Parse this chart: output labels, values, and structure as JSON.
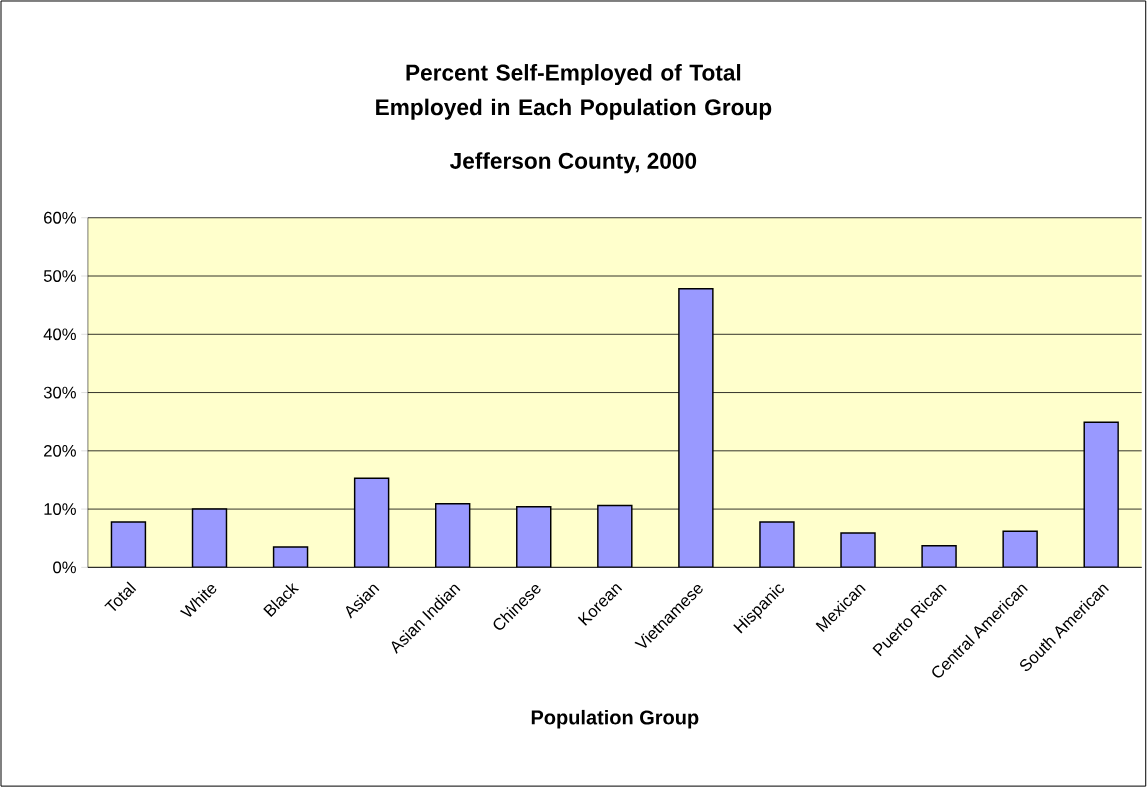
{
  "chart_data": {
    "type": "bar",
    "title": "Percent Self-Employed of Total Employed in Each Population Group",
    "subtitle": "Jefferson County, 2000",
    "xlabel": "Population Group",
    "categories": [
      "Total",
      "White",
      "Black",
      "Asian",
      "Asian Indian",
      "Chinese",
      "Korean",
      "Vietnamese",
      "Hispanic",
      "Mexican",
      "Puerto Rican",
      "Central American",
      "South American"
    ],
    "values": [
      7.8,
      10.0,
      3.5,
      15.3,
      10.9,
      10.4,
      10.6,
      47.8,
      7.8,
      5.9,
      3.7,
      6.2,
      24.9
    ],
    "color": "#9999ff",
    "ylim": [
      0,
      60
    ],
    "yticks": [
      {
        "value": 0,
        "label": "0%"
      },
      {
        "value": 10,
        "label": "10%"
      },
      {
        "value": 20,
        "label": "20%"
      },
      {
        "value": 30,
        "label": "30%"
      },
      {
        "value": 40,
        "label": "40%"
      },
      {
        "value": 50,
        "label": "50%"
      },
      {
        "value": 60,
        "label": "60%"
      }
    ],
    "grid": "y"
  }
}
